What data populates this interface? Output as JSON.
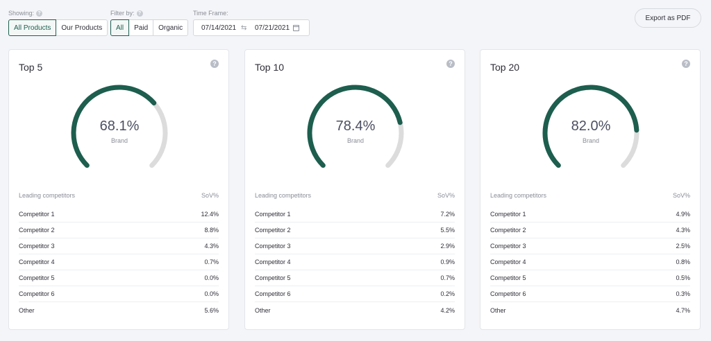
{
  "filters": {
    "showing_label": "Showing:",
    "showing_options": [
      "All Products",
      "Our Products"
    ],
    "filter_label": "Filter by:",
    "filter_options": [
      "All",
      "Paid",
      "Organic"
    ],
    "timeframe_label": "Time Frame:",
    "date_start": "07/14/2021",
    "date_end": "07/21/2021",
    "date_separator": "⇆",
    "export_label": "Export as PDF"
  },
  "colors": {
    "accent": "#1d5e4e",
    "track": "#dcdcdc"
  },
  "table_headers": {
    "left": "Leading competitors",
    "right": "SoV%"
  },
  "cards": [
    {
      "title": "Top 5",
      "value_text": "68.1%",
      "value": 68.1,
      "label": "Brand",
      "rows": [
        {
          "name": "Competitor 1",
          "value": "12.4%"
        },
        {
          "name": "Competitor 2",
          "value": "8.8%"
        },
        {
          "name": "Competitor 3",
          "value": "4.3%"
        },
        {
          "name": "Competitor 4",
          "value": "0.7%"
        },
        {
          "name": "Competitor 5",
          "value": "0.0%"
        },
        {
          "name": "Competitor 6",
          "value": "0.0%"
        },
        {
          "name": "Other",
          "value": "5.6%"
        }
      ]
    },
    {
      "title": "Top 10",
      "value_text": "78.4%",
      "value": 78.4,
      "label": "Brand",
      "rows": [
        {
          "name": "Competitor 1",
          "value": "7.2%"
        },
        {
          "name": "Competitor 2",
          "value": "5.5%"
        },
        {
          "name": "Competitor 3",
          "value": "2.9%"
        },
        {
          "name": "Competitor 4",
          "value": "0.9%"
        },
        {
          "name": "Competitor 5",
          "value": "0.7%"
        },
        {
          "name": "Competitor 6",
          "value": "0.2%"
        },
        {
          "name": "Other",
          "value": "4.2%"
        }
      ]
    },
    {
      "title": "Top 20",
      "value_text": "82.0%",
      "value": 82.0,
      "label": "Brand",
      "rows": [
        {
          "name": "Competitor 1",
          "value": "4.9%"
        },
        {
          "name": "Competitor 2",
          "value": "4.3%"
        },
        {
          "name": "Competitor 3",
          "value": "2.5%"
        },
        {
          "name": "Competitor 4",
          "value": "0.8%"
        },
        {
          "name": "Competitor 5",
          "value": "0.5%"
        },
        {
          "name": "Competitor 6",
          "value": "0.3%"
        },
        {
          "name": "Other",
          "value": "4.7%"
        }
      ]
    }
  ]
}
